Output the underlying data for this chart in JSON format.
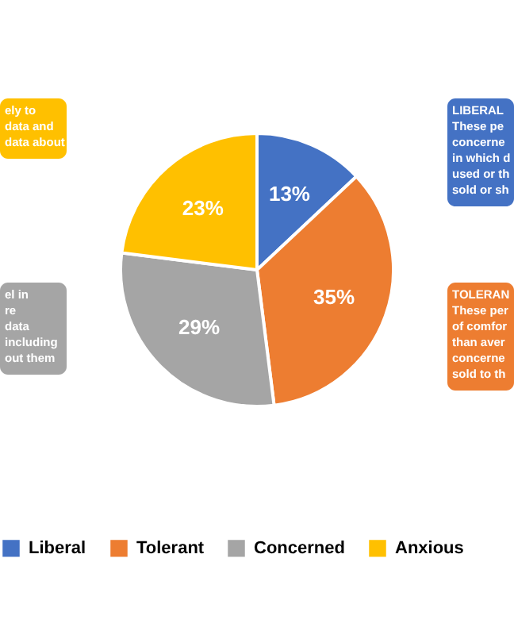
{
  "chart_data": {
    "type": "pie",
    "categories": [
      "Liberal",
      "Tolerant",
      "Concerned",
      "Anxious"
    ],
    "values": [
      13,
      35,
      29,
      23
    ],
    "colors": [
      "#4472c4",
      "#ed7d31",
      "#a5a5a5",
      "#ffc000"
    ],
    "value_labels": [
      "13%",
      "35%",
      "29%",
      "23%"
    ],
    "legend": "bottom",
    "annotations": [
      "LIBERAL\nThese pe\nconcerne\nin which d\nused or th\nsold or sh",
      "TOLERAN\nThese per\nof comfor\nthan aver\nconcerne\nsold to th",
      "el in\nre\ndata\nincluding\nout them",
      "ely to\ndata and\ndata about"
    ]
  }
}
